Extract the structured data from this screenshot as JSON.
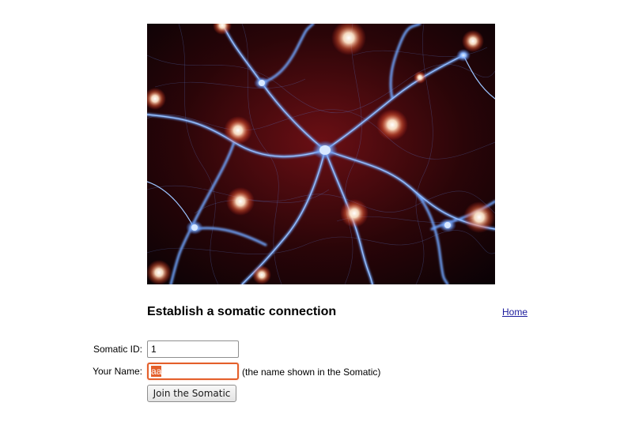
{
  "hero_image": {
    "icon": "neuron-network-image"
  },
  "header": {
    "title": "Establish a somatic connection",
    "home_link": "Home"
  },
  "form": {
    "somatic_id_label": "Somatic ID:",
    "somatic_id_value": "1",
    "your_name_label": "Your Name:",
    "your_name_value": "aa",
    "your_name_hint": "(the name shown in the Somatic)",
    "submit_label": "Join the Somatic"
  },
  "colors": {
    "focus_ring": "#e45f2a",
    "link": "#1a1a9c",
    "neuron_glow": "#4d8dff"
  }
}
